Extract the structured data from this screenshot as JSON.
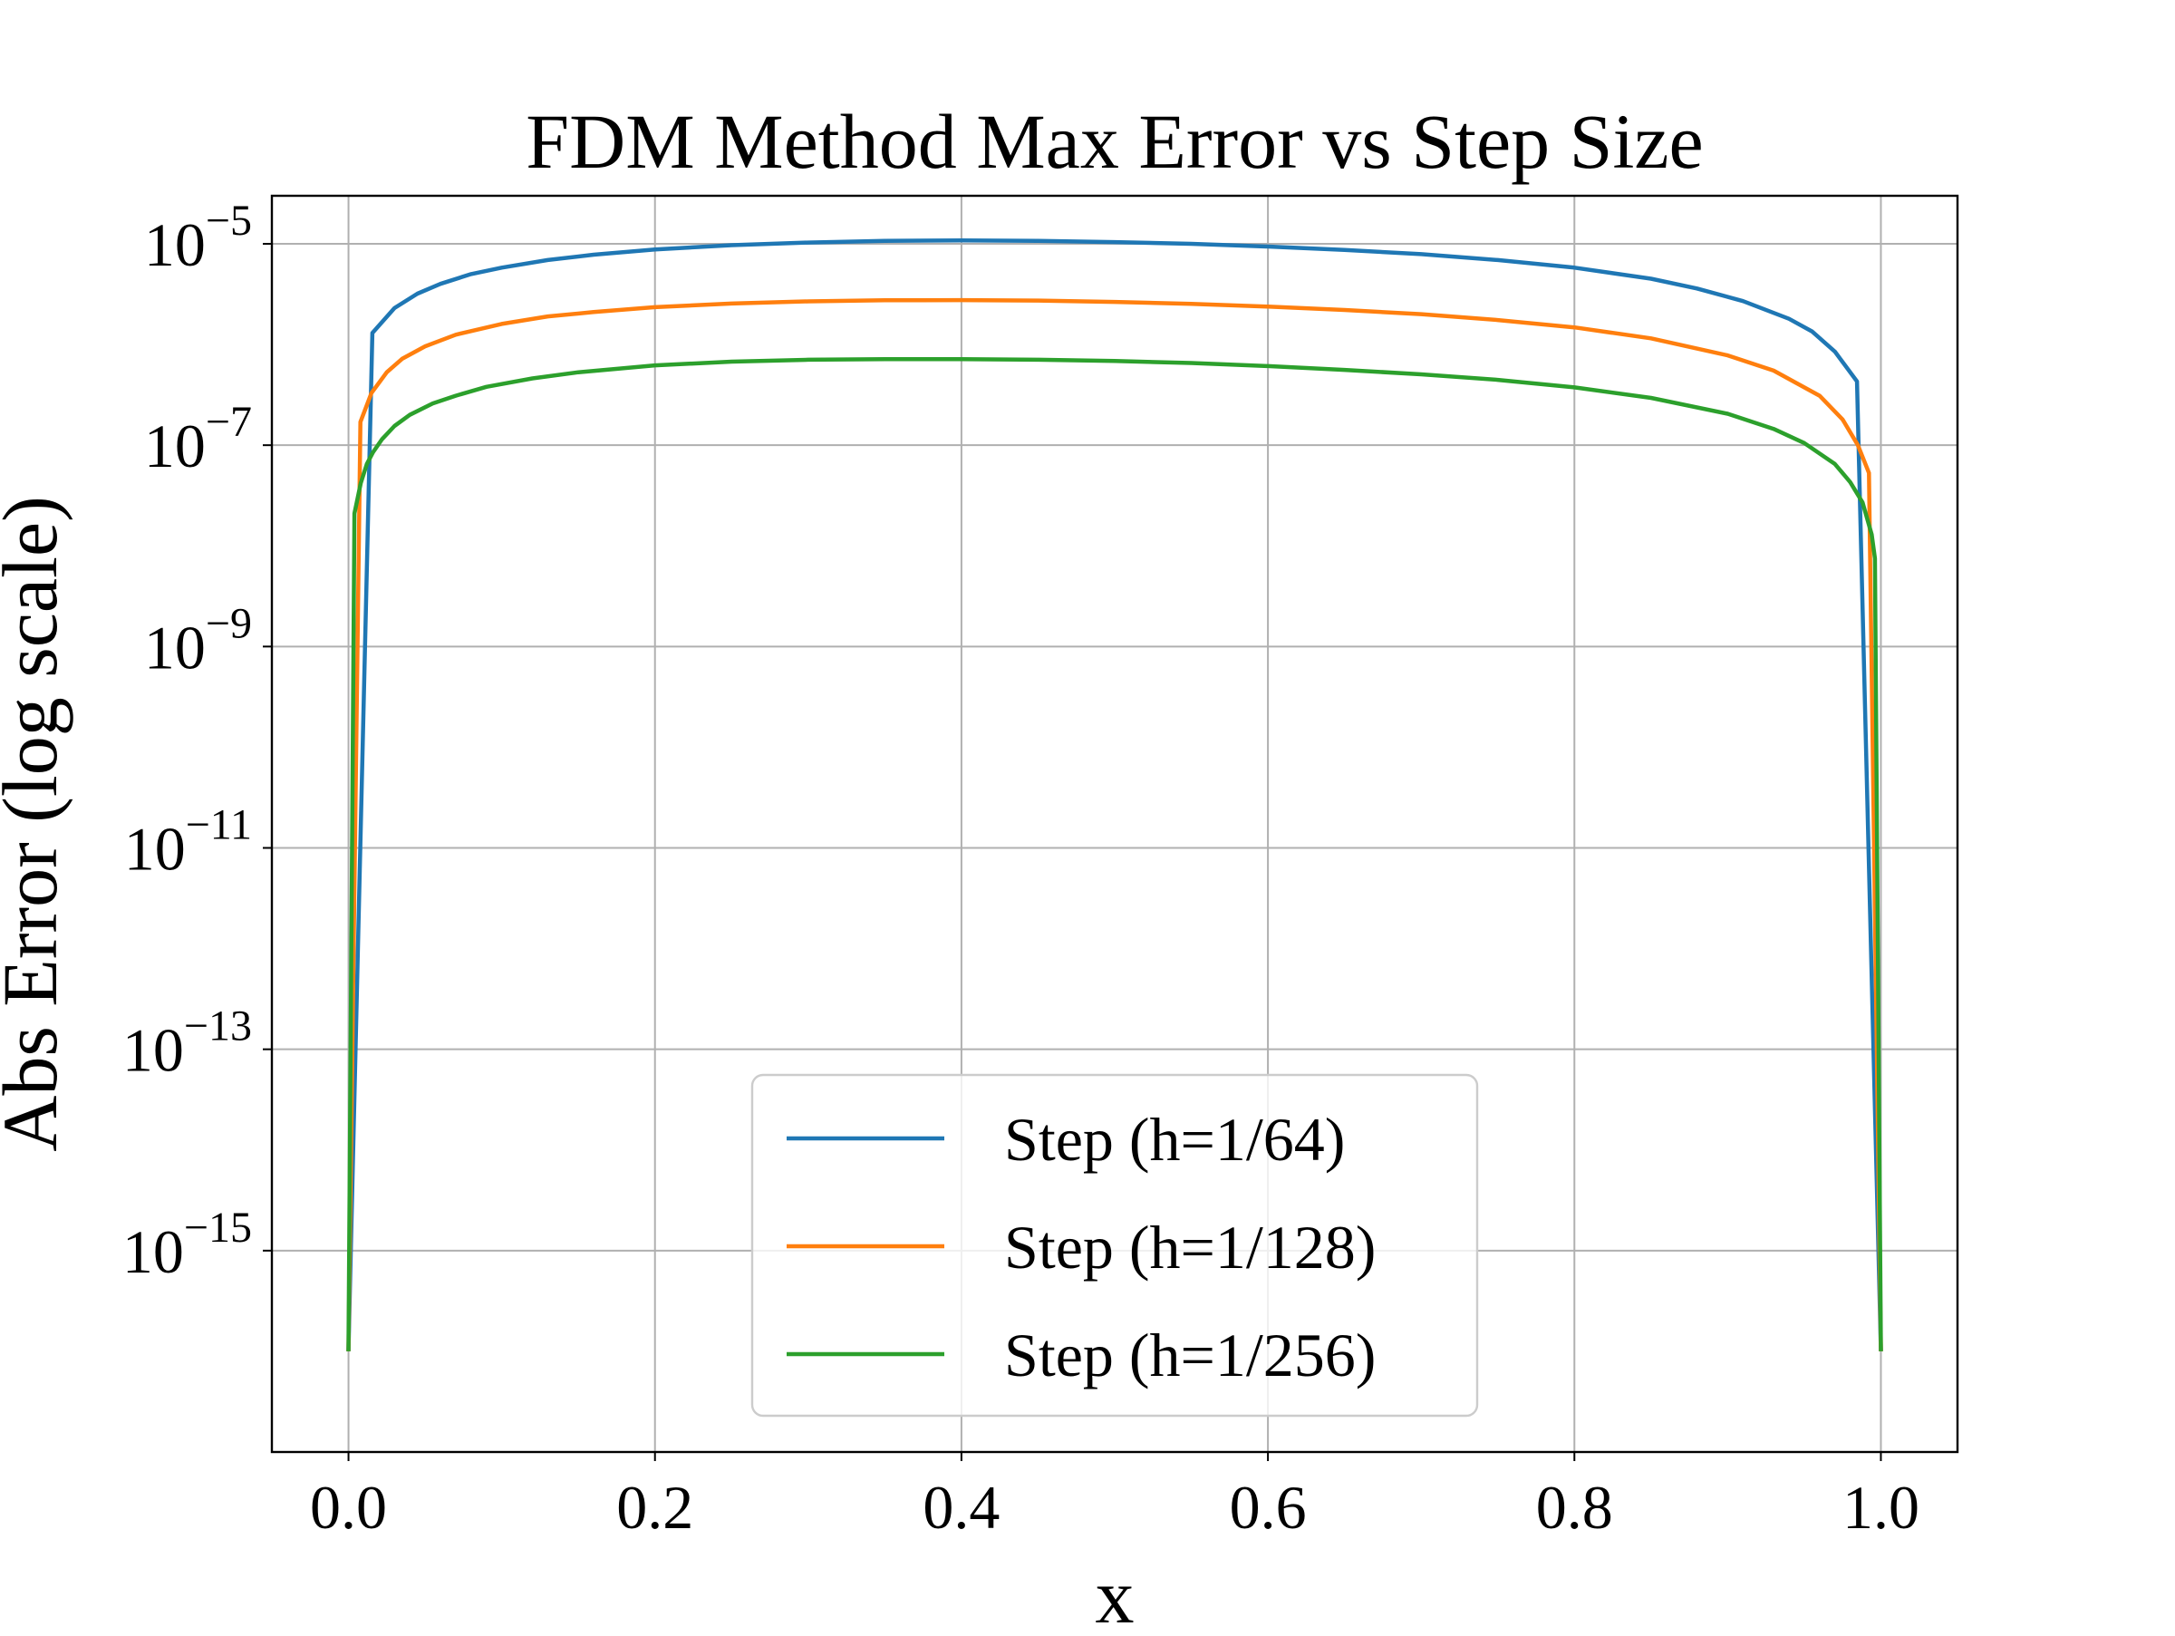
{
  "chart_data": {
    "type": "line",
    "title": "FDM Method Max Error vs Step Size",
    "xlabel": "x",
    "ylabel": "Abs Error (log scale)",
    "yscale": "log",
    "xlim": [
      -0.05,
      1.05
    ],
    "ylim": [
      1e-17,
      3e-05
    ],
    "xticks": [
      0.0,
      0.2,
      0.4,
      0.6,
      0.8,
      1.0
    ],
    "xtick_labels": [
      "0.0",
      "0.2",
      "0.4",
      "0.6",
      "0.8",
      "1.0"
    ],
    "yticks": [
      {
        "value": 1e-05,
        "base": "10",
        "exp": "−5"
      },
      {
        "value": 1e-07,
        "base": "10",
        "exp": "−7"
      },
      {
        "value": 1e-09,
        "base": "10",
        "exp": "−9"
      },
      {
        "value": 1e-11,
        "base": "10",
        "exp": "−11"
      },
      {
        "value": 1e-13,
        "base": "10",
        "exp": "−13"
      },
      {
        "value": 1e-15,
        "base": "10",
        "exp": "−15"
      }
    ],
    "grid": true,
    "legend_position": "lower center",
    "series": [
      {
        "name": "Step (h=1/64)",
        "color": "#1f77b4",
        "x": [
          0.0,
          0.0156,
          0.03,
          0.045,
          0.06,
          0.08,
          0.1,
          0.13,
          0.16,
          0.2,
          0.25,
          0.3,
          0.35,
          0.4,
          0.45,
          0.5,
          0.55,
          0.6,
          0.65,
          0.7,
          0.75,
          0.8,
          0.85,
          0.88,
          0.91,
          0.94,
          0.955,
          0.97,
          0.9844,
          1.0
        ],
        "y": [
          1e-16,
          1.3e-06,
          2.3e-06,
          3.2e-06,
          4e-06,
          5e-06,
          5.8e-06,
          6.9e-06,
          7.8e-06,
          8.8e-06,
          9.7e-06,
          1.03e-05,
          1.07e-05,
          1.08e-05,
          1.07e-05,
          1.04e-05,
          1e-05,
          9.4e-06,
          8.7e-06,
          7.9e-06,
          6.9e-06,
          5.8e-06,
          4.5e-06,
          3.6e-06,
          2.7e-06,
          1.8e-06,
          1.35e-06,
          8.5e-07,
          4.3e-07,
          1e-16
        ]
      },
      {
        "name": "Step (h=1/128)",
        "color": "#ff7f0e",
        "x": [
          0.0,
          0.0078,
          0.015,
          0.025,
          0.035,
          0.05,
          0.07,
          0.1,
          0.13,
          0.16,
          0.2,
          0.25,
          0.3,
          0.35,
          0.4,
          0.45,
          0.5,
          0.55,
          0.6,
          0.65,
          0.7,
          0.75,
          0.8,
          0.85,
          0.9,
          0.93,
          0.96,
          0.975,
          0.985,
          0.9922,
          1.0
        ],
        "y": [
          1e-16,
          1.7e-07,
          3.3e-07,
          5.3e-07,
          7.2e-07,
          9.6e-07,
          1.25e-06,
          1.6e-06,
          1.9e-06,
          2.1e-06,
          2.35e-06,
          2.55e-06,
          2.68e-06,
          2.75e-06,
          2.76e-06,
          2.73e-06,
          2.65e-06,
          2.53e-06,
          2.38e-06,
          2.2e-06,
          2e-06,
          1.75e-06,
          1.48e-06,
          1.15e-06,
          7.8e-07,
          5.5e-07,
          3.1e-07,
          1.8e-07,
          1e-07,
          5.3e-08,
          1e-16
        ]
      },
      {
        "name": "Step (h=1/256)",
        "color": "#2ca02c",
        "x": [
          0.0,
          0.0039,
          0.008,
          0.012,
          0.016,
          0.022,
          0.03,
          0.04,
          0.055,
          0.07,
          0.09,
          0.12,
          0.15,
          0.2,
          0.25,
          0.3,
          0.35,
          0.4,
          0.45,
          0.5,
          0.55,
          0.6,
          0.65,
          0.7,
          0.75,
          0.8,
          0.85,
          0.9,
          0.93,
          0.95,
          0.97,
          0.98,
          0.988,
          0.994,
          0.9961,
          1.0
        ],
        "y": [
          1e-16,
          2.1e-08,
          4.2e-08,
          6.5e-08,
          8.5e-08,
          1.15e-07,
          1.55e-07,
          2e-07,
          2.6e-07,
          3.1e-07,
          3.8e-07,
          4.6e-07,
          5.3e-07,
          6.2e-07,
          6.75e-07,
          7.05e-07,
          7.15e-07,
          7.15e-07,
          7.05e-07,
          6.85e-07,
          6.55e-07,
          6.1e-07,
          5.6e-07,
          5.05e-07,
          4.45e-07,
          3.75e-07,
          2.95e-07,
          2.05e-07,
          1.45e-07,
          1.05e-07,
          6.5e-08,
          4.3e-08,
          2.7e-08,
          1.3e-08,
          7.5e-09,
          1e-16
        ]
      }
    ]
  }
}
